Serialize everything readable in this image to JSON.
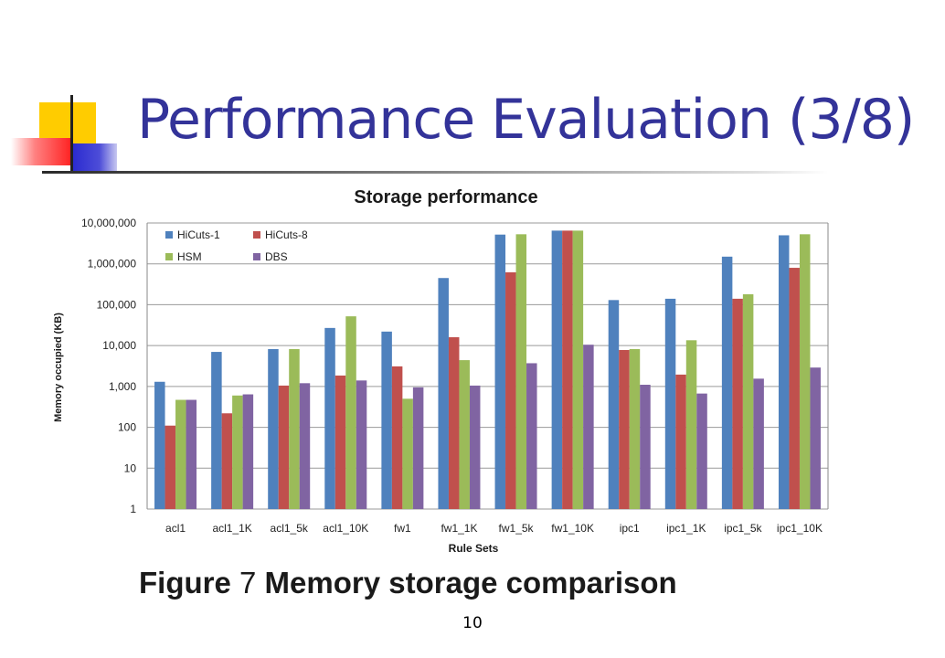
{
  "slide": {
    "title": "Performance Evaluation (3/8)",
    "caption_prefix": "Figure",
    "caption_number": "7",
    "caption_text": "Memory storage comparison",
    "page_number": "10"
  },
  "colors": {
    "title": "#333399",
    "deco_yellow": "#ffcc00",
    "deco_blue": "#3333cc",
    "deco_red": "#ff3333"
  },
  "chart_data": {
    "type": "bar",
    "title": "Storage performance",
    "xlabel": "Rule Sets",
    "ylabel": "Memory occupied (KB)",
    "yscale": "log",
    "ylim": [
      1,
      10000000
    ],
    "yticks": [
      1,
      10,
      100,
      1000,
      10000,
      100000,
      1000000,
      10000000
    ],
    "ytick_labels": [
      "1",
      "10",
      "100",
      "1,000",
      "10,000",
      "100,000",
      "1,000,000",
      "10,000,000"
    ],
    "grid": true,
    "legend": "top-left",
    "categories": [
      "acl1",
      "acl1_1K",
      "acl1_5k",
      "acl1_10K",
      "fw1",
      "fw1_1K",
      "fw1_5k",
      "fw1_10K",
      "ipc1",
      "ipc1_1K",
      "ipc1_5k",
      "ipc1_10K"
    ],
    "series": [
      {
        "name": "HiCuts-1",
        "color": "#4f81bd",
        "values": [
          1300,
          7000,
          8200,
          27000,
          22000,
          450000,
          5200000,
          6500000,
          130000,
          140000,
          1500000,
          5000000
        ]
      },
      {
        "name": "HiCuts-8",
        "color": "#c0504d",
        "values": [
          110,
          220,
          1050,
          1850,
          3100,
          16000,
          620000,
          6500000,
          7800,
          1950,
          140000,
          800000
        ]
      },
      {
        "name": "HSM",
        "color": "#9bbb59",
        "values": [
          470,
          600,
          8200,
          52000,
          500,
          4400,
          5300000,
          6500000,
          8200,
          13500,
          180000,
          5300000
        ]
      },
      {
        "name": "DBS",
        "color": "#8064a2",
        "values": [
          470,
          640,
          1200,
          1400,
          950,
          1050,
          3700,
          10500,
          1100,
          670,
          1550,
          2900
        ]
      }
    ]
  }
}
